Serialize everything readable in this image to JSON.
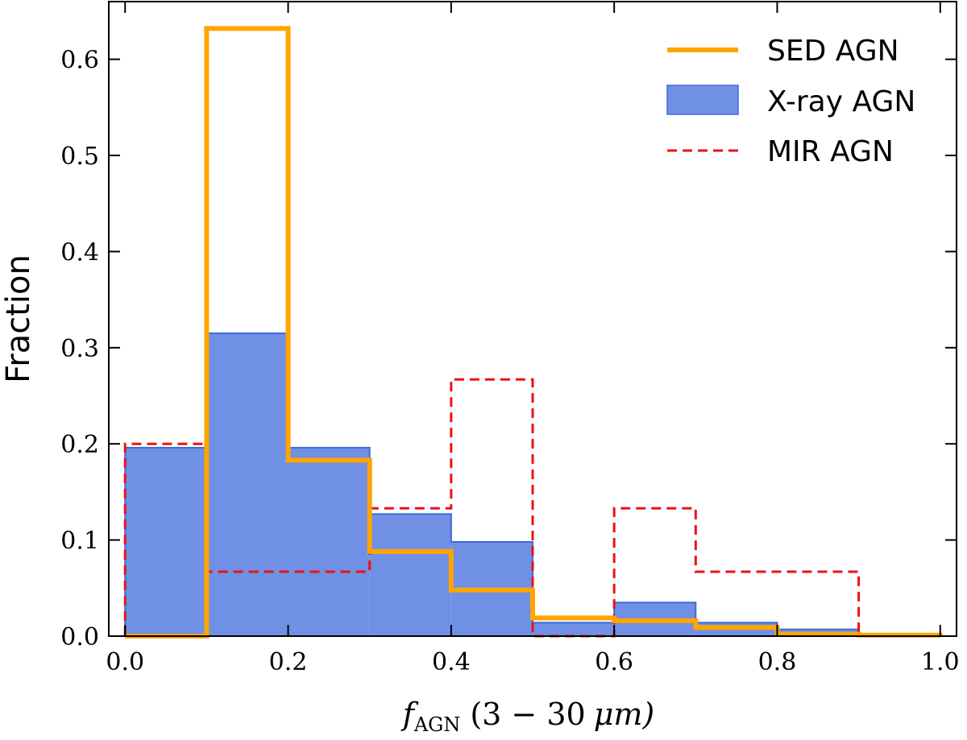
{
  "chart_data": {
    "type": "bar",
    "title": "",
    "xlabel": "f_AGN (3 − 30 μm)",
    "xlabel_parts": {
      "f": "f",
      "sub": "AGN",
      "range": "(3 − 30",
      "unit": "μm)"
    },
    "ylabel": "Fraction",
    "xlim": [
      -0.02,
      1.02
    ],
    "ylim": [
      0,
      0.66
    ],
    "xticks": [
      0.0,
      0.2,
      0.4,
      0.6,
      0.8,
      1.0
    ],
    "xtick_labels": [
      "0.0",
      "0.2",
      "0.4",
      "0.6",
      "0.8",
      "1.0"
    ],
    "yticks": [
      0.0,
      0.1,
      0.2,
      0.3,
      0.4,
      0.5,
      0.6
    ],
    "ytick_labels": [
      "0.0",
      "0.1",
      "0.2",
      "0.3",
      "0.4",
      "0.5",
      "0.6"
    ],
    "bin_edges": [
      0.0,
      0.1,
      0.2,
      0.3,
      0.4,
      0.5,
      0.6,
      0.7,
      0.8,
      0.9,
      1.0
    ],
    "legend_position": "top-right",
    "series": [
      {
        "name": "SED AGN",
        "style": "step-line-solid",
        "color": "#FFA500",
        "values": [
          0.0,
          0.632,
          0.183,
          0.088,
          0.048,
          0.019,
          0.016,
          0.009,
          0.002,
          0.001
        ]
      },
      {
        "name": "X-ray AGN",
        "style": "filled-step",
        "color": "#7090E6",
        "edge_color": "#3D6BD9",
        "values": [
          0.196,
          0.315,
          0.196,
          0.127,
          0.098,
          0.014,
          0.035,
          0.014,
          0.007,
          0.0
        ]
      },
      {
        "name": "MIR AGN",
        "style": "step-line-dashed",
        "color": "#EE1111",
        "values": [
          0.2,
          0.067,
          0.067,
          0.133,
          0.267,
          0.0,
          0.133,
          0.067,
          0.067,
          0.0
        ]
      }
    ]
  }
}
